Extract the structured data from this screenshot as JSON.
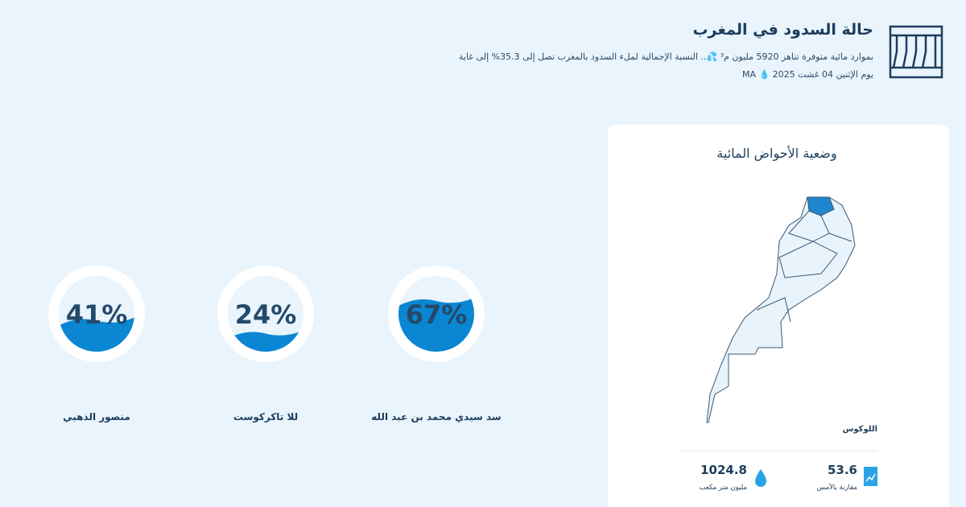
{
  "header": {
    "title": "حالة السدود في المغرب",
    "subtitle": "بموارد مائية متوفرة تناهز 5920 مليون م³ 💦.. النسبة الإجمالية لملء السدود بالمغرب تصل إلى 35.3% إلى غاية يوم الإثنين 04 غشت 2025 💧 MA"
  },
  "gauges": [
    {
      "name": "سد سيدي محمد بن عبد الله",
      "value": 67,
      "value_label": "67%"
    },
    {
      "name": "للا تاكركوست",
      "value": 24,
      "value_label": "24%"
    },
    {
      "name": "منصور الذهبي",
      "value": 41,
      "value_label": "41%"
    }
  ],
  "panel": {
    "title": "وضعية الأحواض المائية",
    "region": "اللوكوس",
    "stats": [
      {
        "value": 53.6,
        "label": "مقارنة بالأمس"
      },
      {
        "value": 1024.8,
        "label": "مليون متر مكعب"
      }
    ]
  }
}
